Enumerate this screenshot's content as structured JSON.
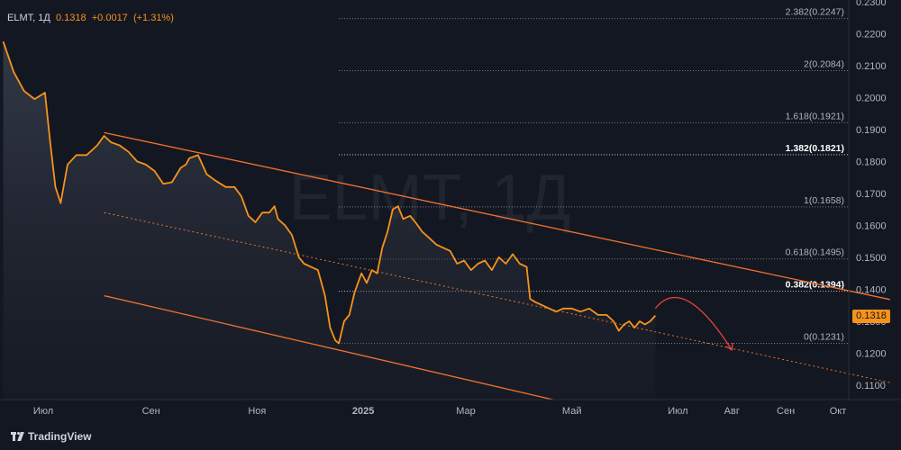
{
  "header": {
    "symbol": "ELMT",
    "interval": "1Д",
    "price": "0.1318",
    "change": "+0.0017",
    "change_pct": "(+1.31%)"
  },
  "watermark": "ELMT, 1Д",
  "current_price_label": "0.1318",
  "brand": "TradingView",
  "colors": {
    "background": "#131722",
    "series": "#f7931a",
    "channel": "#f0722c",
    "forecast_arrow": "#e8453c",
    "text": "#b2b5be"
  },
  "chart_data": {
    "type": "line",
    "ylim": [
      0.1055,
      0.2305
    ],
    "y_ticks": [
      "0.2300",
      "0.2200",
      "0.2100",
      "0.2000",
      "0.1900",
      "0.1800",
      "0.1700",
      "0.1600",
      "0.1500",
      "0.1400",
      "0.1300",
      "0.1200",
      "0.1100"
    ],
    "x_ticks": [
      "Июл",
      "Сен",
      "Ноя",
      "2025",
      "Мар",
      "Май",
      "Июл",
      "Авг",
      "Сен",
      "Окт"
    ],
    "x_tick_dates": [
      "2024-07-01",
      "2024-09-01",
      "2024-11-01",
      "2025-01-01",
      "2025-03-01",
      "2025-05-01",
      "2025-07-01",
      "2025-08-01",
      "2025-09-01",
      "2025-10-01"
    ],
    "series": [
      {
        "values": [
          [
            "2024-06-08",
            0.2175
          ],
          [
            "2024-06-14",
            0.208
          ],
          [
            "2024-06-20",
            0.202
          ],
          [
            "2024-06-26",
            0.1995
          ],
          [
            "2024-07-02",
            0.2015
          ],
          [
            "2024-07-05",
            0.186
          ],
          [
            "2024-07-08",
            0.172
          ],
          [
            "2024-07-11",
            0.167
          ],
          [
            "2024-07-15",
            0.179
          ],
          [
            "2024-07-20",
            0.182
          ],
          [
            "2024-07-26",
            0.182
          ],
          [
            "2024-08-01",
            0.185
          ],
          [
            "2024-08-05",
            0.188
          ],
          [
            "2024-08-09",
            0.186
          ],
          [
            "2024-08-14",
            0.185
          ],
          [
            "2024-08-19",
            0.183
          ],
          [
            "2024-08-24",
            0.18
          ],
          [
            "2024-08-29",
            0.179
          ],
          [
            "2024-09-03",
            0.177
          ],
          [
            "2024-09-08",
            0.173
          ],
          [
            "2024-09-13",
            0.1735
          ],
          [
            "2024-09-18",
            0.178
          ],
          [
            "2024-09-21",
            0.179
          ],
          [
            "2024-09-23",
            0.181
          ],
          [
            "2024-09-28",
            0.182
          ],
          [
            "2024-10-03",
            0.176
          ],
          [
            "2024-10-08",
            0.174
          ],
          [
            "2024-10-14",
            0.172
          ],
          [
            "2024-10-19",
            0.172
          ],
          [
            "2024-10-23",
            0.169
          ],
          [
            "2024-10-27",
            0.163
          ],
          [
            "2024-10-31",
            0.161
          ],
          [
            "2024-11-04",
            0.164
          ],
          [
            "2024-11-08",
            0.164
          ],
          [
            "2024-11-11",
            0.166
          ],
          [
            "2024-11-13",
            0.162
          ],
          [
            "2024-11-17",
            0.16
          ],
          [
            "2024-11-21",
            0.157
          ],
          [
            "2024-11-25",
            0.15
          ],
          [
            "2024-11-28",
            0.148
          ],
          [
            "2024-12-02",
            0.147
          ],
          [
            "2024-12-06",
            0.146
          ],
          [
            "2024-12-10",
            0.138
          ],
          [
            "2024-12-13",
            0.128
          ],
          [
            "2024-12-16",
            0.124
          ],
          [
            "2024-12-18",
            0.1231
          ],
          [
            "2024-12-21",
            0.13
          ],
          [
            "2024-12-24",
            0.132
          ],
          [
            "2024-12-27",
            0.139
          ],
          [
            "2024-12-31",
            0.145
          ],
          [
            "2025-01-03",
            0.142
          ],
          [
            "2025-01-06",
            0.146
          ],
          [
            "2025-01-09",
            0.145
          ],
          [
            "2025-01-12",
            0.153
          ],
          [
            "2025-01-15",
            0.158
          ],
          [
            "2025-01-18",
            0.165
          ],
          [
            "2025-01-21",
            0.166
          ],
          [
            "2025-01-24",
            0.162
          ],
          [
            "2025-01-28",
            0.163
          ],
          [
            "2025-01-31",
            0.161
          ],
          [
            "2025-02-04",
            0.158
          ],
          [
            "2025-02-08",
            0.156
          ],
          [
            "2025-02-12",
            0.154
          ],
          [
            "2025-02-16",
            0.153
          ],
          [
            "2025-02-20",
            0.152
          ],
          [
            "2025-02-24",
            0.148
          ],
          [
            "2025-02-28",
            0.149
          ],
          [
            "2025-03-04",
            0.146
          ],
          [
            "2025-03-08",
            0.148
          ],
          [
            "2025-03-12",
            0.149
          ],
          [
            "2025-03-16",
            0.146
          ],
          [
            "2025-03-20",
            0.15
          ],
          [
            "2025-03-24",
            0.148
          ],
          [
            "2025-03-28",
            0.151
          ],
          [
            "2025-04-01",
            0.148
          ],
          [
            "2025-04-05",
            0.147
          ],
          [
            "2025-04-07",
            0.137
          ],
          [
            "2025-04-10",
            0.136
          ],
          [
            "2025-04-14",
            0.135
          ],
          [
            "2025-04-18",
            0.134
          ],
          [
            "2025-04-22",
            0.133
          ],
          [
            "2025-04-26",
            0.134
          ],
          [
            "2025-05-01",
            0.134
          ],
          [
            "2025-05-06",
            0.133
          ],
          [
            "2025-05-11",
            0.134
          ],
          [
            "2025-05-16",
            0.132
          ],
          [
            "2025-05-21",
            0.132
          ],
          [
            "2025-05-25",
            0.13
          ],
          [
            "2025-05-28",
            0.127
          ],
          [
            "2025-05-31",
            0.129
          ],
          [
            "2025-06-03",
            0.13
          ],
          [
            "2025-06-06",
            0.128
          ],
          [
            "2025-06-09",
            0.13
          ],
          [
            "2025-06-12",
            0.129
          ],
          [
            "2025-06-15",
            0.13
          ],
          [
            "2025-06-18",
            0.1318
          ]
        ]
      }
    ],
    "fib_levels": [
      {
        "ratio": "2.382",
        "value": 0.2247
      },
      {
        "ratio": "2",
        "value": 0.2084
      },
      {
        "ratio": "1.618",
        "value": 0.1921
      },
      {
        "ratio": "1.382",
        "value": 0.1821
      },
      {
        "ratio": "1",
        "value": 0.1658
      },
      {
        "ratio": "0.618",
        "value": 0.1495
      },
      {
        "ratio": "0.382",
        "value": 0.1394
      },
      {
        "ratio": "0",
        "value": 0.1231
      }
    ],
    "fib_start_date": "2024-12-18",
    "fib_highlighted": [
      "1.382",
      "0.382"
    ],
    "channel": {
      "upper": [
        [
          "2024-08-05",
          0.189
        ],
        [
          "2025-10-31",
          0.1368
        ]
      ],
      "middle": [
        [
          "2024-08-05",
          0.164
        ],
        [
          "2025-10-31",
          0.1108
        ]
      ],
      "lower": [
        [
          "2024-08-05",
          0.138
        ],
        [
          "2025-04-20",
          0.1055
        ]
      ]
    },
    "forecast_arrow": [
      [
        "2025-06-18",
        0.134
      ],
      [
        "2025-07-04",
        0.1388
      ],
      [
        "2025-08-01",
        0.121
      ]
    ]
  }
}
